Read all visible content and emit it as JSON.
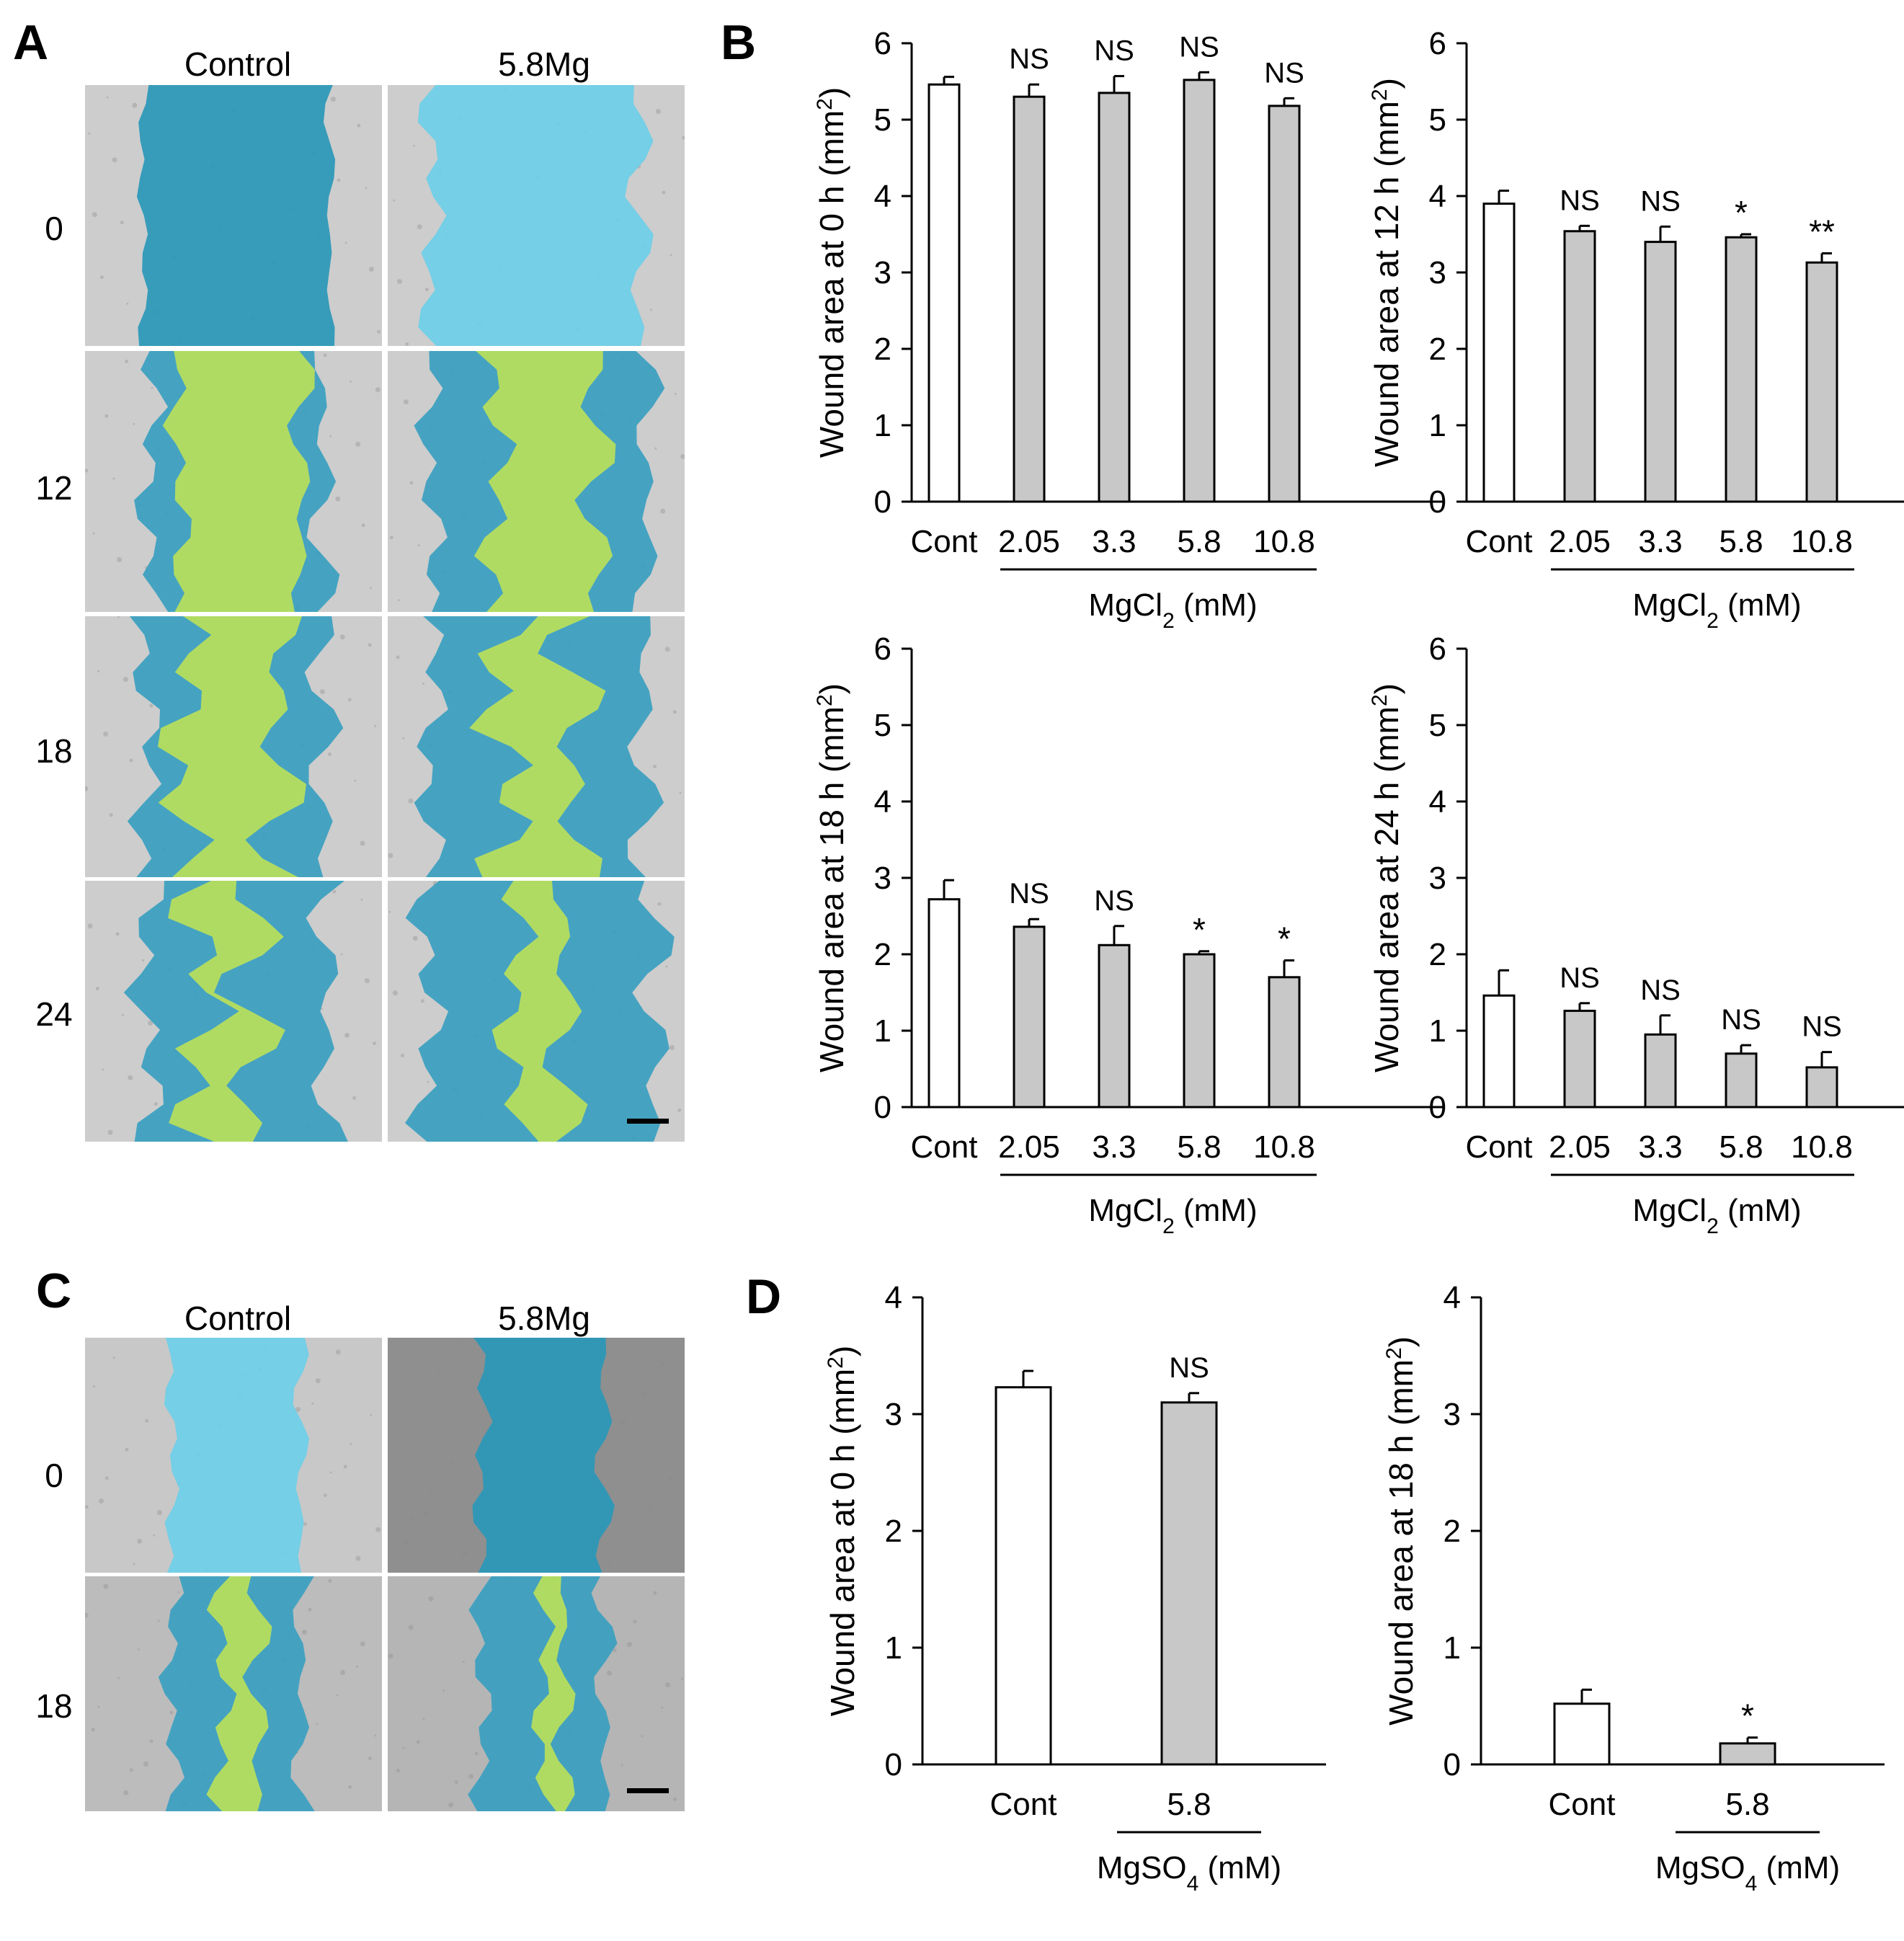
{
  "panels": {
    "A": {
      "letter": "A",
      "columns": [
        "Control",
        "5.8Mg"
      ],
      "rows": [
        "0",
        "12",
        "18",
        "24"
      ]
    },
    "B": {
      "letter": "B"
    },
    "C": {
      "letter": "C",
      "columns": [
        "Control",
        "5.8Mg"
      ],
      "rows": [
        "0",
        "18"
      ]
    },
    "D": {
      "letter": "D"
    }
  },
  "colors": {
    "wound_initial": "#6ecfe8",
    "wound_initial_dark": "#2a98b8",
    "migrated_cells": "#3aa0c0",
    "open_wound": "#b6de5e",
    "open_wound_dark": "#4e7e14",
    "control_bar": "#ffffff",
    "treated_bar": "#c8c8c8"
  },
  "chart_data": [
    {
      "type": "bar",
      "panel": "B",
      "categories": [
        "Cont",
        "2.05",
        "3.3",
        "5.8",
        "10.8"
      ],
      "values": [
        5.46,
        5.3,
        5.35,
        5.52,
        5.18
      ],
      "errors": [
        0.1,
        0.16,
        0.22,
        0.1,
        0.1
      ],
      "significance": [
        "",
        "NS",
        "NS",
        "NS",
        "NS"
      ],
      "ylabel": "Wound area at 0 h (mm2)",
      "ylabel_parts": [
        "Wound area at 0 h (mm",
        "2",
        ")"
      ],
      "xgroup_label_parts": [
        "MgCl",
        "2",
        " (mM)"
      ],
      "yticks": [
        "0",
        "1",
        "2",
        "3",
        "4",
        "5",
        "6"
      ],
      "ylim": [
        0,
        6
      ],
      "grid": false,
      "legend": "none"
    },
    {
      "type": "bar",
      "panel": "B",
      "categories": [
        "Cont",
        "2.05",
        "3.3",
        "5.8",
        "10.8"
      ],
      "values": [
        3.9,
        3.54,
        3.4,
        3.46,
        3.13
      ],
      "errors": [
        0.17,
        0.07,
        0.2,
        0.04,
        0.12
      ],
      "significance": [
        "",
        "NS",
        "NS",
        "*",
        "**"
      ],
      "ylabel": "Wound area at 12 h (mm2)",
      "ylabel_parts": [
        "Wound area at 12 h (mm",
        "2",
        ")"
      ],
      "xgroup_label_parts": [
        "MgCl",
        "2",
        " (mM)"
      ],
      "yticks": [
        "0",
        "1",
        "2",
        "3",
        "4",
        "5",
        "6"
      ],
      "ylim": [
        0,
        6
      ],
      "grid": false,
      "legend": "none"
    },
    {
      "type": "bar",
      "panel": "B",
      "categories": [
        "Cont",
        "2.05",
        "3.3",
        "5.8",
        "10.8"
      ],
      "values": [
        2.72,
        2.36,
        2.12,
        2.0,
        1.7
      ],
      "errors": [
        0.25,
        0.1,
        0.25,
        0.04,
        0.22
      ],
      "significance": [
        "",
        "NS",
        "NS",
        "*",
        "*"
      ],
      "ylabel": "Wound area at 18 h (mm2)",
      "ylabel_parts": [
        "Wound area at 18 h (mm",
        "2",
        ")"
      ],
      "xgroup_label_parts": [
        "MgCl",
        "2",
        " (mM)"
      ],
      "yticks": [
        "0",
        "1",
        "2",
        "3",
        "4",
        "5",
        "6"
      ],
      "ylim": [
        0,
        6
      ],
      "grid": false,
      "legend": "none"
    },
    {
      "type": "bar",
      "panel": "B",
      "categories": [
        "Cont",
        "2.05",
        "3.3",
        "5.8",
        "10.8"
      ],
      "values": [
        1.46,
        1.26,
        0.95,
        0.7,
        0.52
      ],
      "errors": [
        0.33,
        0.1,
        0.25,
        0.11,
        0.2
      ],
      "significance": [
        "",
        "NS",
        "NS",
        "NS",
        "NS"
      ],
      "ylabel": "Wound area at 24 h (mm2)",
      "ylabel_parts": [
        "Wound area at 24 h (mm",
        "2",
        ")"
      ],
      "xgroup_label_parts": [
        "MgCl",
        "2",
        " (mM)"
      ],
      "yticks": [
        "0",
        "1",
        "2",
        "3",
        "4",
        "5",
        "6"
      ],
      "ylim": [
        0,
        6
      ],
      "grid": false,
      "legend": "none"
    },
    {
      "type": "bar",
      "panel": "D",
      "categories": [
        "Cont",
        "5.8"
      ],
      "values": [
        3.23,
        3.1
      ],
      "errors": [
        0.14,
        0.08
      ],
      "significance": [
        "",
        "NS"
      ],
      "ylabel": "Wound area at 0 h (mm2)",
      "ylabel_parts": [
        "Wound area at 0 h (mm",
        "2",
        ")"
      ],
      "xgroup_label_parts": [
        "MgSO",
        "4",
        " (mM)"
      ],
      "yticks": [
        "0",
        "1",
        "2",
        "3",
        "4"
      ],
      "ylim": [
        0,
        4
      ],
      "grid": false,
      "legend": "none"
    },
    {
      "type": "bar",
      "panel": "D",
      "categories": [
        "Cont",
        "5.8"
      ],
      "values": [
        0.52,
        0.18
      ],
      "errors": [
        0.12,
        0.05
      ],
      "significance": [
        "",
        "*"
      ],
      "ylabel": "Wound area at 18 h (mm2)",
      "ylabel_parts": [
        "Wound area at 18 h (mm",
        "2",
        ")"
      ],
      "xgroup_label_parts": [
        "MgSO",
        "4",
        " (mM)"
      ],
      "yticks": [
        "0",
        "1",
        "2",
        "3",
        "4"
      ],
      "ylim": [
        0,
        4
      ],
      "grid": false,
      "legend": "none"
    }
  ]
}
